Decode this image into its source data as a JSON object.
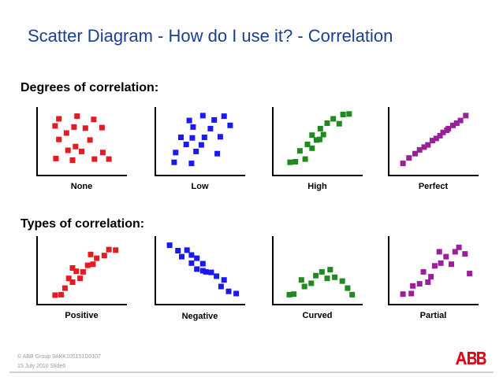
{
  "slide": {
    "title": "Scatter Diagram - How do I use it? - Correlation",
    "footer_line1": "© ABB Group   9AKK105151D0107",
    "footer_line2": "15 July 2010   Slide6",
    "logo_text": "ABB"
  },
  "colors": {
    "title": "#1b3f8f",
    "red": "#e31b23",
    "blue": "#1a1aee",
    "green": "#1f8a1f",
    "purple": "#9b1f9b",
    "logo": "#e30613"
  },
  "sections": [
    {
      "heading": "Degrees of correlation:"
    },
    {
      "heading": "Types of correlation:"
    }
  ],
  "chart_data": [
    {
      "type": "scatter",
      "label": "None",
      "color": "#e31b23",
      "xlim": [
        0,
        10
      ],
      "ylim": [
        0,
        10
      ],
      "points": [
        [
          2.0,
          9.2
        ],
        [
          4.4,
          9.7
        ],
        [
          6.6,
          9.1
        ],
        [
          1.5,
          7.9
        ],
        [
          4.0,
          7.7
        ],
        [
          5.5,
          7.5
        ],
        [
          7.7,
          7.6
        ],
        [
          3.0,
          6.6
        ],
        [
          2.0,
          5.4
        ],
        [
          6.1,
          5.3
        ],
        [
          4.2,
          4.1
        ],
        [
          3.2,
          3.4
        ],
        [
          5.0,
          3.2
        ],
        [
          7.8,
          3.0
        ],
        [
          1.6,
          1.9
        ],
        [
          3.8,
          1.6
        ],
        [
          6.7,
          1.8
        ],
        [
          8.6,
          1.8
        ]
      ]
    },
    {
      "type": "scatter",
      "label": "Low",
      "color": "#1a1aee",
      "xlim": [
        0,
        10
      ],
      "ylim": [
        0,
        10
      ],
      "points": [
        [
          5.4,
          9.8
        ],
        [
          8.2,
          9.7
        ],
        [
          3.6,
          8.9
        ],
        [
          6.9,
          9.0
        ],
        [
          4.1,
          7.7
        ],
        [
          9.0,
          8.0
        ],
        [
          6.4,
          7.4
        ],
        [
          2.5,
          5.8
        ],
        [
          4.0,
          5.7
        ],
        [
          5.6,
          5.8
        ],
        [
          7.7,
          5.9
        ],
        [
          3.2,
          4.5
        ],
        [
          5.2,
          4.4
        ],
        [
          1.8,
          3.0
        ],
        [
          4.5,
          3.2
        ],
        [
          7.3,
          2.8
        ],
        [
          1.6,
          1.2
        ],
        [
          3.9,
          1.0
        ]
      ]
    },
    {
      "type": "scatter",
      "label": "High",
      "color": "#1f8a1f",
      "xlim": [
        0,
        10
      ],
      "ylim": [
        0,
        10
      ],
      "points": [
        [
          1.4,
          1.2
        ],
        [
          2.1,
          1.3
        ],
        [
          3.4,
          1.8
        ],
        [
          2.7,
          3.3
        ],
        [
          4.3,
          3.8
        ],
        [
          3.7,
          4.5
        ],
        [
          4.9,
          5.3
        ],
        [
          4.3,
          6.2
        ],
        [
          5.8,
          6.3
        ],
        [
          5.4,
          7.4
        ],
        [
          6.3,
          8.4
        ],
        [
          7.9,
          8.3
        ],
        [
          7.1,
          9.2
        ],
        [
          8.4,
          10.0
        ],
        [
          9.2,
          10.1
        ],
        [
          5.3,
          5.4
        ]
      ]
    },
    {
      "type": "scatter",
      "label": "Perfect",
      "color": "#9b1f9b",
      "xlim": [
        0,
        10
      ],
      "ylim": [
        0,
        10
      ],
      "points": [
        [
          1.0,
          1.0
        ],
        [
          1.8,
          2.0
        ],
        [
          2.6,
          2.8
        ],
        [
          3.2,
          3.5
        ],
        [
          3.8,
          4.0
        ],
        [
          4.3,
          4.4
        ],
        [
          4.9,
          5.2
        ],
        [
          5.4,
          5.6
        ],
        [
          5.9,
          6.1
        ],
        [
          6.3,
          6.7
        ],
        [
          7.0,
          7.4
        ],
        [
          7.6,
          8.0
        ],
        [
          8.1,
          8.4
        ],
        [
          8.6,
          8.9
        ],
        [
          9.3,
          9.8
        ],
        [
          6.8,
          7.1
        ]
      ]
    },
    {
      "type": "scatter",
      "label": "Positive",
      "color": "#e31b23",
      "xlim": [
        0,
        10
      ],
      "ylim": [
        0,
        10
      ],
      "points": [
        [
          1.5,
          0.5
        ],
        [
          2.3,
          0.6
        ],
        [
          2.8,
          1.8
        ],
        [
          3.8,
          2.9
        ],
        [
          3.3,
          3.6
        ],
        [
          4.8,
          3.6
        ],
        [
          5.2,
          4.8
        ],
        [
          4.3,
          4.9
        ],
        [
          5.8,
          6.0
        ],
        [
          6.5,
          6.2
        ],
        [
          7.0,
          7.3
        ],
        [
          6.2,
          8.0
        ],
        [
          8.0,
          7.8
        ],
        [
          8.6,
          8.9
        ],
        [
          9.5,
          8.8
        ],
        [
          3.8,
          5.5
        ]
      ]
    },
    {
      "type": "scatter",
      "label": "Negative",
      "color": "#1a1aee",
      "xlim": [
        0,
        10
      ],
      "ylim": [
        0,
        10
      ],
      "points": [
        [
          1.0,
          9.7
        ],
        [
          2.1,
          8.7
        ],
        [
          3.3,
          8.8
        ],
        [
          3.9,
          7.9
        ],
        [
          2.6,
          7.6
        ],
        [
          4.6,
          7.3
        ],
        [
          3.9,
          6.4
        ],
        [
          5.4,
          6.3
        ],
        [
          4.6,
          5.3
        ],
        [
          5.8,
          4.8
        ],
        [
          6.5,
          4.7
        ],
        [
          7.2,
          4.0
        ],
        [
          8.2,
          3.3
        ],
        [
          7.8,
          2.1
        ],
        [
          8.8,
          1.2
        ],
        [
          9.8,
          0.8
        ],
        [
          5.4,
          5.0
        ]
      ]
    },
    {
      "type": "scatter",
      "label": "Curved",
      "color": "#1f8a1f",
      "xlim": [
        0,
        10
      ],
      "ylim": [
        0,
        10
      ],
      "points": [
        [
          1.3,
          0.6
        ],
        [
          1.9,
          0.7
        ],
        [
          3.3,
          2.1
        ],
        [
          2.9,
          3.3
        ],
        [
          4.2,
          2.7
        ],
        [
          4.8,
          4.1
        ],
        [
          5.6,
          4.8
        ],
        [
          6.3,
          3.6
        ],
        [
          7.3,
          3.8
        ],
        [
          6.7,
          5.2
        ],
        [
          8.3,
          3.1
        ],
        [
          9.0,
          1.8
        ],
        [
          9.6,
          0.6
        ]
      ]
    },
    {
      "type": "scatter",
      "label": "Partial",
      "color": "#9b1f9b",
      "xlim": [
        0,
        10
      ],
      "ylim": [
        0,
        10
      ],
      "points": [
        [
          1.0,
          0.7
        ],
        [
          2.1,
          0.8
        ],
        [
          2.3,
          2.2
        ],
        [
          3.2,
          2.6
        ],
        [
          4.3,
          2.9
        ],
        [
          4.7,
          3.9
        ],
        [
          3.7,
          4.8
        ],
        [
          5.2,
          5.9
        ],
        [
          6.0,
          6.4
        ],
        [
          7.4,
          6.2
        ],
        [
          6.7,
          7.6
        ],
        [
          7.9,
          8.5
        ],
        [
          8.4,
          9.3
        ],
        [
          9.2,
          8.1
        ],
        [
          5.8,
          8.5
        ],
        [
          9.8,
          4.5
        ]
      ]
    }
  ]
}
